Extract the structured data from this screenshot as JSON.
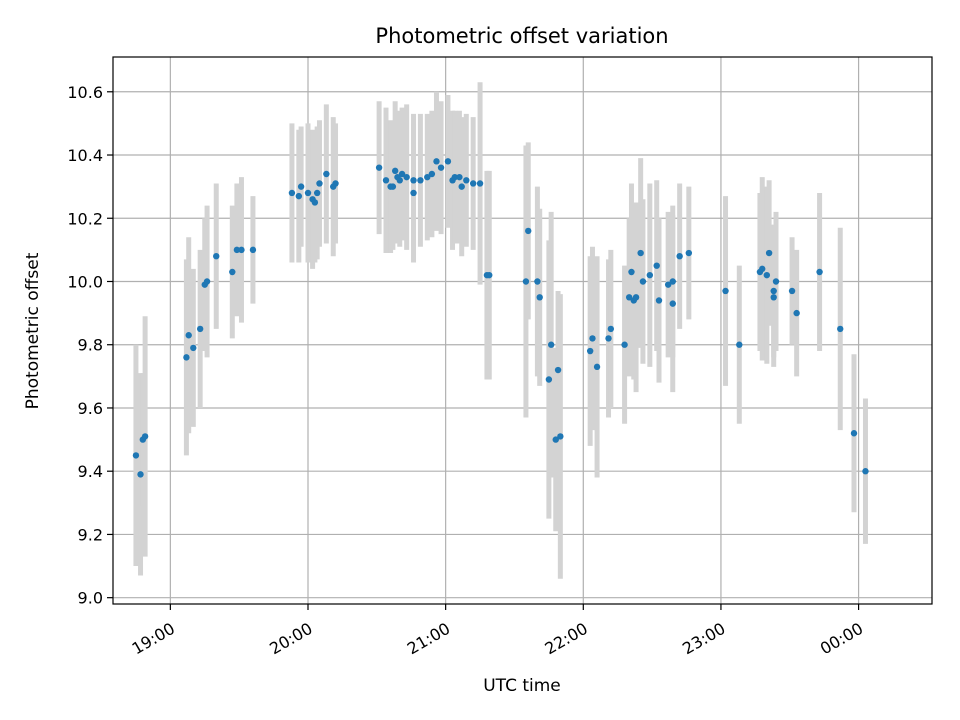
{
  "chart_data": {
    "type": "scatter",
    "title": "Photometric offset variation",
    "xlabel": "UTC time",
    "ylabel": "Photometric offset",
    "x_ticks": [
      "19:00",
      "20:00",
      "21:00",
      "22:00",
      "23:00",
      "00:00"
    ],
    "y_ticks": [
      "9.0",
      "9.2",
      "9.4",
      "9.6",
      "9.8",
      "10.0",
      "10.2",
      "10.4",
      "10.6"
    ],
    "xlim": [
      "18:35",
      "00:32"
    ],
    "ylim": [
      8.98,
      10.71
    ],
    "grid": true,
    "colors": {
      "point": "#1f77b4",
      "errorbar": "#d3d3d3",
      "grid": "#b0b0b0"
    },
    "points": [
      {
        "x": "18:45",
        "y": 9.45,
        "err": 0.35
      },
      {
        "x": "18:47",
        "y": 9.39,
        "err": 0.32
      },
      {
        "x": "18:48",
        "y": 9.5,
        "err": 0.21
      },
      {
        "x": "18:49",
        "y": 9.51,
        "err": 0.38
      },
      {
        "x": "19:07",
        "y": 9.76,
        "err": 0.31
      },
      {
        "x": "19:08",
        "y": 9.83,
        "err": 0.31
      },
      {
        "x": "19:10",
        "y": 9.79,
        "err": 0.25
      },
      {
        "x": "19:13",
        "y": 9.85,
        "err": 0.25
      },
      {
        "x": "19:15",
        "y": 9.99,
        "err": 0.21
      },
      {
        "x": "19:16",
        "y": 10.0,
        "err": 0.24
      },
      {
        "x": "19:20",
        "y": 10.08,
        "err": 0.23
      },
      {
        "x": "19:27",
        "y": 10.03,
        "err": 0.21
      },
      {
        "x": "19:29",
        "y": 10.1,
        "err": 0.21
      },
      {
        "x": "19:31",
        "y": 10.1,
        "err": 0.23
      },
      {
        "x": "19:36",
        "y": 10.1,
        "err": 0.17
      },
      {
        "x": "19:53",
        "y": 10.28,
        "err": 0.22
      },
      {
        "x": "19:56",
        "y": 10.27,
        "err": 0.21
      },
      {
        "x": "19:57",
        "y": 10.3,
        "err": 0.19
      },
      {
        "x": "20:00",
        "y": 10.28,
        "err": 0.22
      },
      {
        "x": "20:02",
        "y": 10.26,
        "err": 0.22
      },
      {
        "x": "20:03",
        "y": 10.25,
        "err": 0.19
      },
      {
        "x": "20:04",
        "y": 10.28,
        "err": 0.21
      },
      {
        "x": "20:05",
        "y": 10.31,
        "err": 0.2
      },
      {
        "x": "20:08",
        "y": 10.34,
        "err": 0.22
      },
      {
        "x": "20:11",
        "y": 10.3,
        "err": 0.22
      },
      {
        "x": "20:12",
        "y": 10.31,
        "err": 0.19
      },
      {
        "x": "20:31",
        "y": 10.36,
        "err": 0.21
      },
      {
        "x": "20:34",
        "y": 10.32,
        "err": 0.23
      },
      {
        "x": "20:36",
        "y": 10.3,
        "err": 0.21
      },
      {
        "x": "20:37",
        "y": 10.3,
        "err": 0.2
      },
      {
        "x": "20:38",
        "y": 10.35,
        "err": 0.22
      },
      {
        "x": "20:39",
        "y": 10.33,
        "err": 0.21
      },
      {
        "x": "20:40",
        "y": 10.32,
        "err": 0.21
      },
      {
        "x": "20:41",
        "y": 10.34,
        "err": 0.21
      },
      {
        "x": "20:43",
        "y": 10.33,
        "err": 0.23
      },
      {
        "x": "20:46",
        "y": 10.28,
        "err": 0.22
      },
      {
        "x": "20:46",
        "y": 10.32,
        "err": 0.21
      },
      {
        "x": "20:49",
        "y": 10.32,
        "err": 0.21
      },
      {
        "x": "20:52",
        "y": 10.33,
        "err": 0.2
      },
      {
        "x": "20:54",
        "y": 10.34,
        "err": 0.2
      },
      {
        "x": "20:56",
        "y": 10.38,
        "err": 0.22
      },
      {
        "x": "20:58",
        "y": 10.36,
        "err": 0.21
      },
      {
        "x": "21:01",
        "y": 10.38,
        "err": 0.21
      },
      {
        "x": "21:03",
        "y": 10.32,
        "err": 0.22
      },
      {
        "x": "21:04",
        "y": 10.33,
        "err": 0.21
      },
      {
        "x": "21:06",
        "y": 10.33,
        "err": 0.21
      },
      {
        "x": "21:07",
        "y": 10.3,
        "err": 0.22
      },
      {
        "x": "21:09",
        "y": 10.32,
        "err": 0.21
      },
      {
        "x": "21:12",
        "y": 10.31,
        "err": 0.21
      },
      {
        "x": "21:15",
        "y": 10.31,
        "err": 0.32
      },
      {
        "x": "21:18",
        "y": 10.02,
        "err": 0.33
      },
      {
        "x": "21:19",
        "y": 10.02,
        "err": 0.33
      },
      {
        "x": "21:35",
        "y": 10.0,
        "err": 0.43
      },
      {
        "x": "21:36",
        "y": 10.16,
        "err": 0.28
      },
      {
        "x": "21:40",
        "y": 10.0,
        "err": 0.3
      },
      {
        "x": "21:41",
        "y": 9.95,
        "err": 0.28
      },
      {
        "x": "21:45",
        "y": 9.69,
        "err": 0.44
      },
      {
        "x": "21:46",
        "y": 9.8,
        "err": 0.42
      },
      {
        "x": "21:48",
        "y": 9.5,
        "err": 0.29
      },
      {
        "x": "21:49",
        "y": 9.72,
        "err": 0.25
      },
      {
        "x": "21:50",
        "y": 9.51,
        "err": 0.45
      },
      {
        "x": "22:03",
        "y": 9.78,
        "err": 0.3
      },
      {
        "x": "22:04",
        "y": 9.82,
        "err": 0.29
      },
      {
        "x": "22:06",
        "y": 9.73,
        "err": 0.35
      },
      {
        "x": "22:11",
        "y": 9.82,
        "err": 0.25
      },
      {
        "x": "22:12",
        "y": 9.85,
        "err": 0.25
      },
      {
        "x": "22:18",
        "y": 9.8,
        "err": 0.25
      },
      {
        "x": "22:20",
        "y": 9.95,
        "err": 0.25
      },
      {
        "x": "22:21",
        "y": 10.03,
        "err": 0.28
      },
      {
        "x": "22:22",
        "y": 9.94,
        "err": 0.25
      },
      {
        "x": "22:23",
        "y": 9.95,
        "err": 0.3
      },
      {
        "x": "22:25",
        "y": 10.09,
        "err": 0.3
      },
      {
        "x": "22:26",
        "y": 10.0,
        "err": 0.26
      },
      {
        "x": "22:29",
        "y": 10.02,
        "err": 0.29
      },
      {
        "x": "22:32",
        "y": 10.05,
        "err": 0.27
      },
      {
        "x": "22:33",
        "y": 9.94,
        "err": 0.26
      },
      {
        "x": "22:37",
        "y": 9.99,
        "err": 0.23
      },
      {
        "x": "22:39",
        "y": 9.93,
        "err": 0.28
      },
      {
        "x": "22:39",
        "y": 10.0,
        "err": 0.24
      },
      {
        "x": "22:42",
        "y": 10.08,
        "err": 0.23
      },
      {
        "x": "22:46",
        "y": 10.09,
        "err": 0.21
      },
      {
        "x": "23:02",
        "y": 9.97,
        "err": 0.3
      },
      {
        "x": "23:08",
        "y": 9.8,
        "err": 0.25
      },
      {
        "x": "23:17",
        "y": 10.03,
        "err": 0.25
      },
      {
        "x": "23:18",
        "y": 10.04,
        "err": 0.29
      },
      {
        "x": "23:20",
        "y": 10.02,
        "err": 0.28
      },
      {
        "x": "23:21",
        "y": 10.09,
        "err": 0.23
      },
      {
        "x": "23:23",
        "y": 9.95,
        "err": 0.22
      },
      {
        "x": "23:23",
        "y": 9.97,
        "err": 0.21
      },
      {
        "x": "23:24",
        "y": 10.0,
        "err": 0.22
      },
      {
        "x": "23:31",
        "y": 9.97,
        "err": 0.17
      },
      {
        "x": "23:33",
        "y": 9.9,
        "err": 0.2
      },
      {
        "x": "23:43",
        "y": 10.03,
        "err": 0.25
      },
      {
        "x": "23:52",
        "y": 9.85,
        "err": 0.32
      },
      {
        "x": "23:58",
        "y": 9.52,
        "err": 0.25
      },
      {
        "x": "00:03",
        "y": 9.4,
        "err": 0.23
      }
    ]
  }
}
